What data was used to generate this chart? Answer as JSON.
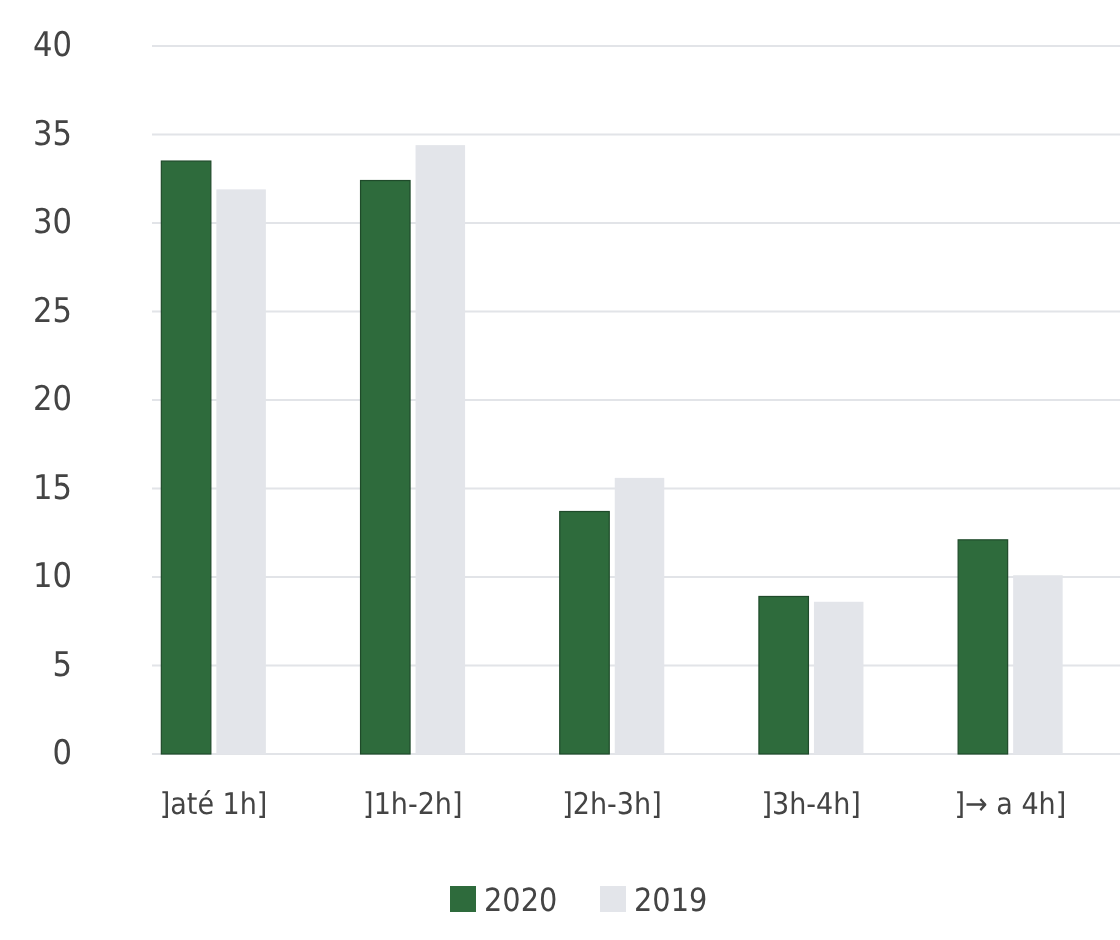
{
  "chart_data": {
    "type": "bar",
    "categories": [
      "]até 1h]",
      "]1h-2h]",
      "]2h-3h]",
      "]3h-4h]",
      "]→ a 4h]"
    ],
    "series": [
      {
        "name": "2020",
        "color": "#2e6b3c",
        "values": [
          33.5,
          32.4,
          13.7,
          8.9,
          12.1
        ]
      },
      {
        "name": "2019",
        "color": "#e3e5ea",
        "values": [
          31.9,
          34.4,
          15.6,
          8.6,
          10.1
        ]
      }
    ],
    "ylim": [
      0,
      40
    ],
    "yticks": [
      0,
      5,
      10,
      15,
      20,
      25,
      30,
      35,
      40
    ],
    "grid": "y",
    "legend": "bottom"
  }
}
